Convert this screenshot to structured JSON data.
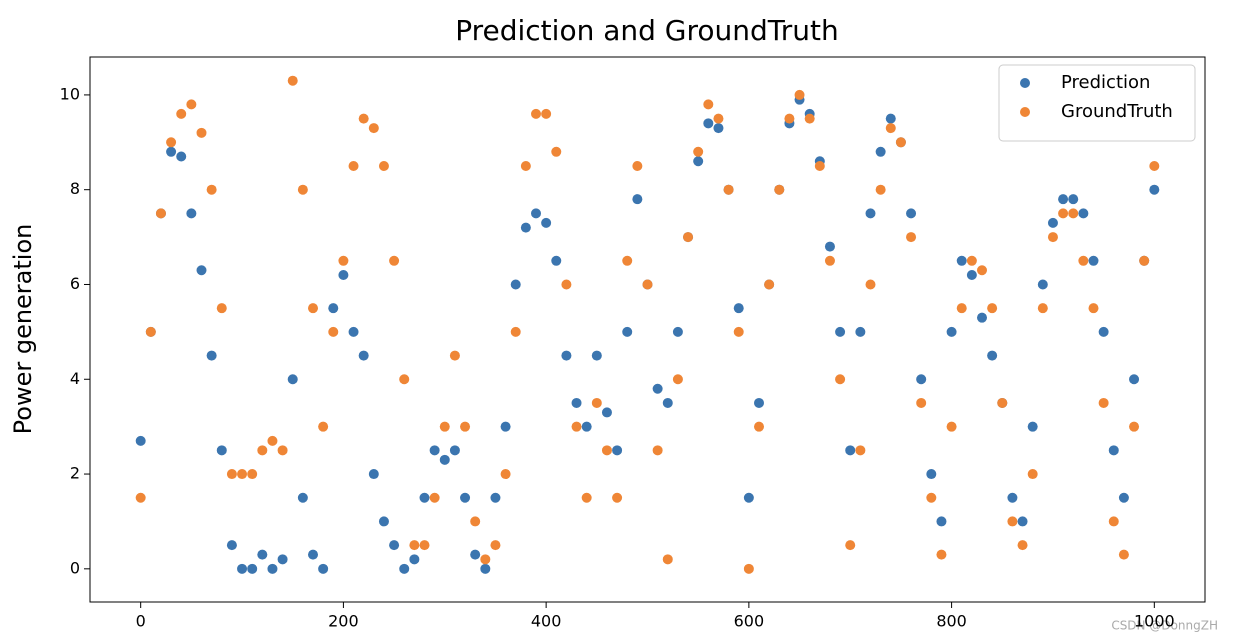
{
  "chart_data": {
    "type": "scatter",
    "title": "Prediction and GroundTruth",
    "y_label": "Power generation",
    "x": [
      0,
      10,
      20,
      30,
      40,
      50,
      60,
      70,
      80,
      90,
      100,
      110,
      120,
      130,
      140,
      150,
      160,
      170,
      180,
      190,
      200,
      210,
      220,
      230,
      240,
      250,
      260,
      270,
      280,
      290,
      300,
      310,
      320,
      330,
      340,
      350,
      360,
      370,
      380,
      390,
      400,
      410,
      420,
      430,
      440,
      450,
      460,
      470,
      480,
      490,
      500,
      510,
      520,
      530,
      540,
      550,
      560,
      570,
      580,
      590,
      600,
      610,
      620,
      630,
      640,
      650,
      660,
      670,
      680,
      690,
      700,
      710,
      720,
      730,
      740,
      750,
      760,
      770,
      780,
      790,
      800,
      810,
      820,
      830,
      840,
      850,
      860,
      870,
      880,
      890,
      900,
      910,
      920,
      930,
      940,
      950,
      960,
      970,
      980,
      990,
      1000
    ],
    "series": [
      {
        "name": "Prediction",
        "color": "#3b75af",
        "values": [
          2.7,
          5,
          7.5,
          8.8,
          8.7,
          7.5,
          6.3,
          4.5,
          2.5,
          0.5,
          0,
          0,
          0.3,
          0,
          0.2,
          4,
          1.5,
          0.3,
          0,
          5.5,
          6.2,
          5,
          4.5,
          2,
          1,
          0.5,
          0,
          0.2,
          1.5,
          2.5,
          2.3,
          2.5,
          1.5,
          0.3,
          0,
          1.5,
          3,
          6,
          7.2,
          7.5,
          7.3,
          6.5,
          4.5,
          3.5,
          3,
          4.5,
          3.3,
          2.5,
          5,
          7.8,
          6,
          3.8,
          3.5,
          5,
          7,
          8.6,
          9.4,
          9.3,
          8,
          5.5,
          1.5,
          3.5,
          6,
          8,
          9.4,
          9.9,
          9.6,
          8.6,
          6.8,
          5,
          2.5,
          5,
          7.5,
          8.8,
          9.5,
          9,
          7.5,
          4,
          2,
          1,
          5,
          6.5,
          6.2,
          5.3,
          4.5,
          3.5,
          1.5,
          1,
          3,
          6,
          7.3,
          7.8,
          7.8,
          7.5,
          6.5,
          5,
          2.5,
          1.5,
          4,
          6.5,
          8
        ]
      },
      {
        "name": "GroundTruth",
        "color": "#ef8636",
        "values": [
          1.5,
          5,
          7.5,
          9,
          9.6,
          9.8,
          9.2,
          8,
          5.5,
          2,
          2,
          2,
          2.5,
          2.7,
          2.5,
          10.3,
          8,
          5.5,
          3,
          5,
          6.5,
          8.5,
          9.5,
          9.3,
          8.5,
          6.5,
          4,
          0.5,
          0.5,
          1.5,
          3,
          4.5,
          3,
          1,
          0.2,
          0.5,
          2,
          5,
          8.5,
          9.6,
          9.6,
          8.8,
          6,
          3,
          1.5,
          3.5,
          2.5,
          1.5,
          6.5,
          8.5,
          6,
          2.5,
          0.2,
          4,
          7,
          8.8,
          9.8,
          9.5,
          8,
          5,
          0,
          3,
          6,
          8,
          9.5,
          10,
          9.5,
          8.5,
          6.5,
          4,
          0.5,
          2.5,
          6,
          8,
          9.3,
          9,
          7,
          3.5,
          1.5,
          0.3,
          3,
          5.5,
          6.5,
          6.3,
          5.5,
          3.5,
          1,
          0.5,
          2,
          5.5,
          7,
          7.5,
          7.5,
          6.5,
          5.5,
          3.5,
          1,
          0.3,
          3,
          6.5,
          8.5
        ]
      }
    ],
    "xlim": [
      -50,
      1050
    ],
    "ylim": [
      -0.7,
      10.8
    ],
    "xticks": [
      0,
      200,
      400,
      600,
      800,
      1000
    ],
    "yticks": [
      0,
      2,
      4,
      6,
      8,
      10
    ],
    "legend": "upper right",
    "grid": false
  },
  "watermark": "CSDN @DonngZH"
}
